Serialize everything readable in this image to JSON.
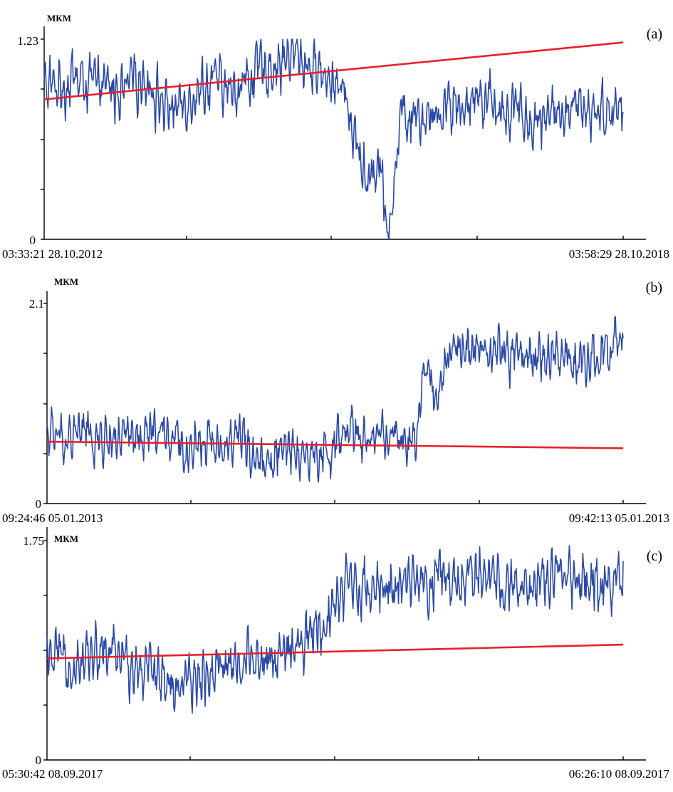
{
  "chart_data": [
    {
      "type": "line",
      "panel_label": "(a)",
      "ylabel": "МКМ",
      "ylim": [
        0,
        1.23
      ],
      "y_tick_labels": [
        "0",
        "1.23"
      ],
      "x_start_label": "03:33:21  28.10.2012",
      "x_end_label": "03:58:29  28.10.2018",
      "series": [
        {
          "x": [
            0,
            0.02,
            0.05,
            0.08,
            0.11,
            0.14,
            0.17,
            0.2,
            0.23,
            0.26,
            0.29,
            0.32,
            0.35,
            0.38,
            0.41,
            0.44,
            0.47,
            0.5,
            0.52,
            0.54,
            0.56,
            0.58,
            0.59,
            0.6,
            0.61,
            0.62,
            0.64,
            0.67,
            0.7,
            0.73,
            0.76,
            0.79,
            0.82,
            0.85,
            0.88,
            0.91,
            0.94,
            0.97,
            1.0
          ],
          "values": [
            0.93,
            0.95,
            0.98,
            0.96,
            0.92,
            0.9,
            1.02,
            0.85,
            0.8,
            0.92,
            0.97,
            0.9,
            0.98,
            1.05,
            1.1,
            1.12,
            1.05,
            1.0,
            0.85,
            0.6,
            0.3,
            0.55,
            0.1,
            0.2,
            0.55,
            0.78,
            0.8,
            0.75,
            0.85,
            0.82,
            0.9,
            0.8,
            0.78,
            0.72,
            0.82,
            0.75,
            0.85,
            0.78,
            0.8
          ],
          "noise": 0.09,
          "color": "#2b4aa8"
        },
        {
          "x": [
            0,
            1
          ],
          "values": [
            0.86,
            1.21
          ],
          "color": "#e8202a"
        }
      ]
    },
    {
      "type": "line",
      "panel_label": "(b)",
      "ylabel": "МКМ",
      "ylim": [
        0,
        2.1
      ],
      "y_tick_labels": [
        "0",
        "2.1"
      ],
      "x_start_label": "09:24:46  05.01.2013",
      "x_end_label": "09:42:13  05.01.2013",
      "series": [
        {
          "x": [
            0,
            0.03,
            0.06,
            0.09,
            0.12,
            0.15,
            0.18,
            0.21,
            0.24,
            0.27,
            0.3,
            0.33,
            0.36,
            0.39,
            0.41,
            0.44,
            0.47,
            0.5,
            0.53,
            0.56,
            0.59,
            0.62,
            0.64,
            0.65,
            0.66,
            0.68,
            0.7,
            0.72,
            0.75,
            0.78,
            0.81,
            0.84,
            0.87,
            0.9,
            0.93,
            0.96,
            1.0
          ],
          "values": [
            0.7,
            0.68,
            0.75,
            0.65,
            0.7,
            0.62,
            0.72,
            0.68,
            0.55,
            0.7,
            0.6,
            0.68,
            0.55,
            0.45,
            0.65,
            0.5,
            0.45,
            0.6,
            0.72,
            0.7,
            0.72,
            0.62,
            0.55,
            1.1,
            1.4,
            1.2,
            1.55,
            1.62,
            1.58,
            1.6,
            1.55,
            1.55,
            1.58,
            1.55,
            1.5,
            1.58,
            1.65
          ],
          "noise": 0.14,
          "color": "#2b4aa8"
        },
        {
          "x": [
            0,
            1
          ],
          "values": [
            0.65,
            0.58
          ],
          "color": "#e8202a"
        }
      ]
    },
    {
      "type": "line",
      "panel_label": "(c)",
      "ylabel": "МКМ",
      "ylim": [
        0,
        1.75
      ],
      "y_tick_labels": [
        "0",
        "1.75"
      ],
      "x_start_label": "05:30:42  08.09.2017",
      "x_end_label": "06:26:10  08.09.2017",
      "series": [
        {
          "x": [
            0,
            0.03,
            0.06,
            0.09,
            0.12,
            0.15,
            0.18,
            0.2,
            0.22,
            0.24,
            0.26,
            0.28,
            0.3,
            0.33,
            0.36,
            0.39,
            0.42,
            0.45,
            0.48,
            0.5,
            0.52,
            0.55,
            0.58,
            0.61,
            0.64,
            0.67,
            0.7,
            0.73,
            0.76,
            0.79,
            0.82,
            0.85,
            0.88,
            0.91,
            0.94,
            0.97,
            1.0
          ],
          "values": [
            0.8,
            0.78,
            0.82,
            0.86,
            0.82,
            0.78,
            0.76,
            0.65,
            0.6,
            0.55,
            0.62,
            0.7,
            0.8,
            0.75,
            0.85,
            0.8,
            0.82,
            0.95,
            1.1,
            1.3,
            1.4,
            1.38,
            1.42,
            1.35,
            1.4,
            1.42,
            1.38,
            1.42,
            1.45,
            1.4,
            1.38,
            1.43,
            1.45,
            1.4,
            1.45,
            1.42,
            1.4
          ],
          "noise": 0.12,
          "color": "#2b4aa8"
        },
        {
          "x": [
            0,
            1
          ],
          "values": [
            0.81,
            0.92
          ],
          "color": "#e8202a"
        }
      ]
    }
  ]
}
